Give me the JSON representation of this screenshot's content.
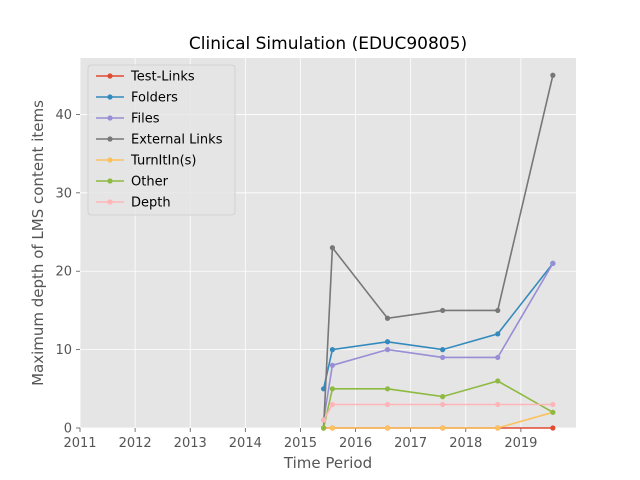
{
  "chart_data": {
    "type": "line",
    "title": "Clinical Simulation (EDUC90805)",
    "xlabel": "Time Period",
    "ylabel": "Maximum depth of LMS content items",
    "xlim": [
      2011.0,
      2020.0
    ],
    "ylim": [
      0,
      47.2
    ],
    "xticks": [
      2011,
      2012,
      2013,
      2014,
      2015,
      2016,
      2017,
      2018,
      2019
    ],
    "yticks": [
      0,
      10,
      20,
      30,
      40
    ],
    "grid": true,
    "legend_position": "upper-left",
    "series": [
      {
        "name": "Test-Links",
        "color": "#E24A33",
        "x": [
          2015.42,
          2015.58,
          2016.58,
          2017.58,
          2018.58,
          2019.58
        ],
        "y": [
          0,
          0,
          0,
          0,
          0,
          0
        ]
      },
      {
        "name": "Folders",
        "color": "#348ABD",
        "x": [
          2015.42,
          2015.58,
          2016.58,
          2017.58,
          2018.58,
          2019.58
        ],
        "y": [
          5,
          10,
          11,
          10,
          12,
          21
        ]
      },
      {
        "name": "Files",
        "color": "#988ED5",
        "x": [
          2015.42,
          2015.58,
          2016.58,
          2017.58,
          2018.58,
          2019.58
        ],
        "y": [
          1,
          8,
          10,
          9,
          9,
          21
        ]
      },
      {
        "name": "External Links",
        "color": "#777777",
        "x": [
          2015.42,
          2015.58,
          2016.58,
          2017.58,
          2018.58,
          2019.58
        ],
        "y": [
          0,
          23,
          14,
          15,
          15,
          45
        ]
      },
      {
        "name": "TurnItIn(s)",
        "color": "#FBC15E",
        "x": [
          2015.42,
          2015.58,
          2016.58,
          2017.58,
          2018.58,
          2019.58
        ],
        "y": [
          0,
          0,
          0,
          0,
          0,
          2
        ]
      },
      {
        "name": "Other",
        "color": "#8EBA42",
        "x": [
          2015.42,
          2015.58,
          2016.58,
          2017.58,
          2018.58,
          2019.58
        ],
        "y": [
          0,
          5,
          5,
          4,
          6,
          2
        ]
      },
      {
        "name": "Depth",
        "color": "#FFB5B8",
        "x": [
          2015.42,
          2015.58,
          2016.58,
          2017.58,
          2018.58,
          2019.58
        ],
        "y": [
          1,
          3,
          3,
          3,
          3,
          3
        ]
      }
    ]
  }
}
